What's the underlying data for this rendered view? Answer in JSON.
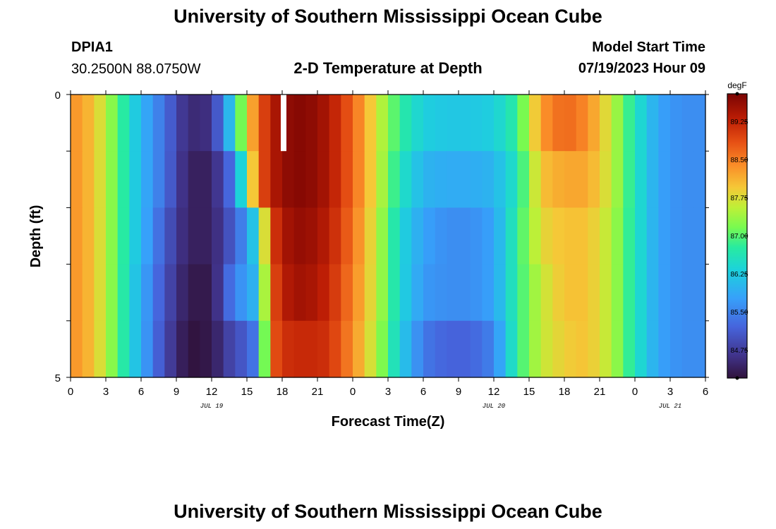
{
  "header": {
    "title": "University of Southern Mississippi Ocean Cube",
    "station_id": "DPIA1",
    "coords": "30.2500N  88.0750W",
    "subtitle": "2-D Temperature at Depth",
    "start_label": "Model Start Time",
    "start_value": "07/19/2023 Hour 09",
    "footer_title": "University of Southern Mississippi Ocean Cube"
  },
  "chart_data": {
    "type": "heatmap",
    "title": "2-D Temperature at Depth",
    "xlabel": "Forecast Time(Z)",
    "ylabel": "Depth (ft)",
    "unit": "degF",
    "x_tick_labels": [
      "0",
      "3",
      "6",
      "9",
      "12",
      "15",
      "18",
      "21",
      "0",
      "3",
      "6",
      "9",
      "12",
      "15",
      "18",
      "21",
      "0",
      "3",
      "6"
    ],
    "date_labels": [
      {
        "text": "JUL 19",
        "hour_index": 12
      },
      {
        "text": "JUL 20",
        "hour_index": 36
      },
      {
        "text": "JUL 21",
        "hour_index": 51
      }
    ],
    "y_tick_labels": [
      "0",
      "5"
    ],
    "ylim": [
      0,
      5
    ],
    "depth_rows": 5,
    "hours": 54,
    "missing": [
      {
        "hour": 18,
        "row": 0
      }
    ],
    "colorbar": {
      "min": 84.2,
      "max": 89.8,
      "tick_values": [
        84.75,
        85.5,
        86.25,
        87.0,
        87.75,
        88.5,
        89.25
      ],
      "tick_labels": [
        "84.75",
        "85.50",
        "86.25",
        "87.00",
        "87.75",
        "88.50",
        "89.25"
      ]
    },
    "key_times": [
      0,
      2,
      4,
      6,
      8,
      10,
      12,
      14,
      15,
      16,
      17,
      18,
      19,
      20,
      21,
      22,
      24,
      26,
      28,
      30,
      32,
      34,
      36,
      38,
      40,
      42,
      44,
      46,
      48,
      50,
      52,
      54
    ],
    "values": [
      [
        88.4,
        88.0,
        87.0,
        86.0,
        85.3,
        84.5,
        84.6,
        86.5,
        87.8,
        88.7,
        89.3,
        89.6,
        89.7,
        89.7,
        89.6,
        89.4,
        88.7,
        87.7,
        86.8,
        86.3,
        86.2,
        86.2,
        86.3,
        86.8,
        88.3,
        88.7,
        88.4,
        87.6,
        86.6,
        85.8,
        85.6,
        85.6
      ],
      [
        88.4,
        88.0,
        87.0,
        86.0,
        85.3,
        84.4,
        84.4,
        85.5,
        87.2,
        88.7,
        89.3,
        89.6,
        89.7,
        89.7,
        89.6,
        89.4,
        88.7,
        87.7,
        86.6,
        86.0,
        85.9,
        85.9,
        86.0,
        86.6,
        88.0,
        88.2,
        88.2,
        87.6,
        86.6,
        85.8,
        85.6,
        85.6
      ],
      [
        88.4,
        88.0,
        87.0,
        86.0,
        85.1,
        84.4,
        84.4,
        85.2,
        85.7,
        86.6,
        88.9,
        89.4,
        89.6,
        89.6,
        89.5,
        89.3,
        88.6,
        87.6,
        86.4,
        85.8,
        85.6,
        85.6,
        85.8,
        86.8,
        87.8,
        88.0,
        88.0,
        87.5,
        86.6,
        85.8,
        85.6,
        85.6
      ],
      [
        88.4,
        88.0,
        87.0,
        85.9,
        85.0,
        84.3,
        84.3,
        85.6,
        85.7,
        86.2,
        88.7,
        89.3,
        89.5,
        89.5,
        89.4,
        89.2,
        88.5,
        87.6,
        86.4,
        85.7,
        85.6,
        85.6,
        85.8,
        86.8,
        87.6,
        88.0,
        88.0,
        87.5,
        86.6,
        85.8,
        85.6,
        85.6
      ],
      [
        88.4,
        88.0,
        87.0,
        85.9,
        84.9,
        84.2,
        84.3,
        85.0,
        85.1,
        85.6,
        88.7,
        89.1,
        89.2,
        89.2,
        89.2,
        89.1,
        88.4,
        87.5,
        86.3,
        85.4,
        85.2,
        85.2,
        85.5,
        86.8,
        87.6,
        87.9,
        88.0,
        87.5,
        86.6,
        85.8,
        85.6,
        85.6
      ]
    ]
  }
}
